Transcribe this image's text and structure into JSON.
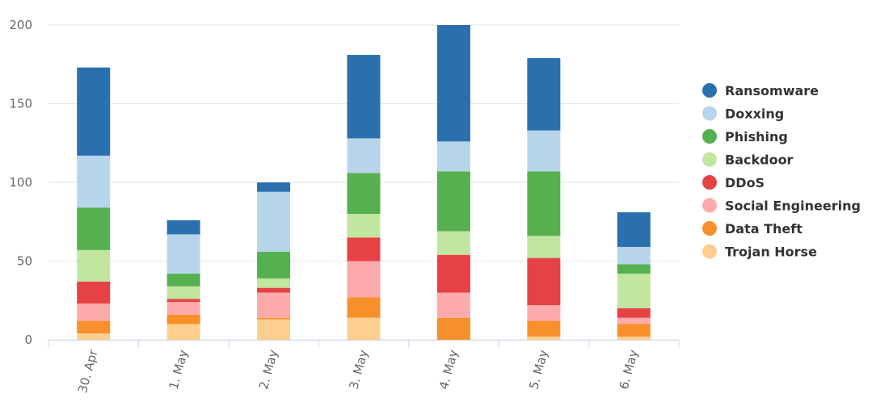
{
  "chart_data": {
    "type": "bar",
    "stacked": true,
    "categories": [
      "30. Apr",
      "1. May",
      "2. May",
      "3. May",
      "4. May",
      "5. May",
      "6. May"
    ],
    "series": [
      {
        "name": "Ransomware",
        "color": "#2a6fae",
        "values": [
          56,
          9,
          6,
          53,
          74,
          46,
          22
        ]
      },
      {
        "name": "Doxxing",
        "color": "#b6d5ea",
        "values": [
          33,
          25,
          38,
          22,
          19,
          26,
          11
        ]
      },
      {
        "name": "Phishing",
        "color": "#55b04f",
        "values": [
          27,
          8,
          17,
          26,
          38,
          41,
          6
        ]
      },
      {
        "name": "Backdoor",
        "color": "#c2e5a0",
        "values": [
          20,
          8,
          6,
          15,
          15,
          14,
          22
        ]
      },
      {
        "name": "DDoS",
        "color": "#e64245",
        "values": [
          14,
          2,
          3,
          15,
          24,
          30,
          6
        ]
      },
      {
        "name": "Social Engineering",
        "color": "#fdaaab",
        "values": [
          11,
          8,
          16,
          23,
          16,
          10,
          4
        ]
      },
      {
        "name": "Data Theft",
        "color": "#f7902a",
        "values": [
          8,
          6,
          1,
          13,
          14,
          10,
          8
        ]
      },
      {
        "name": "Trojan Horse",
        "color": "#fccf8e",
        "values": [
          4,
          10,
          13,
          14,
          0,
          2,
          2
        ]
      }
    ],
    "y_ticks": [
      "0",
      "50",
      "100",
      "150",
      "200"
    ],
    "ylim": [
      0,
      200
    ],
    "grid": true,
    "legend_position": "right"
  }
}
